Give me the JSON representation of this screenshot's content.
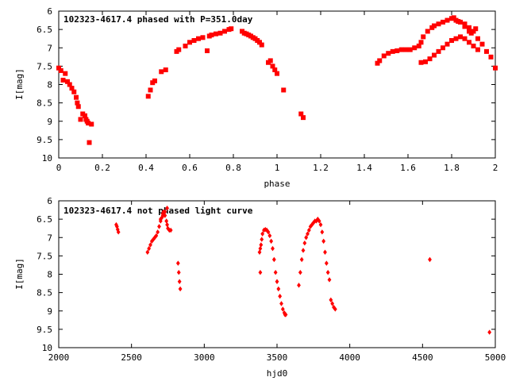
{
  "chart_data": [
    {
      "type": "scatter",
      "title": "102323-4617.4 phased with P=351.0day",
      "xlabel": "phase",
      "ylabel": "I[mag]",
      "xlim": [
        0,
        2
      ],
      "ylim": [
        6,
        10
      ],
      "y_inverted": true,
      "xticks": [
        "0",
        "0.2",
        "0.4",
        "0.6",
        "0.8",
        "1",
        "1.2",
        "1.4",
        "1.6",
        "1.8",
        "2"
      ],
      "yticks": [
        "6",
        "6.5",
        "7",
        "7.5",
        "8",
        "8.5",
        "9",
        "9.5",
        "10"
      ],
      "grid": false,
      "marker_color": "#ff0000",
      "marker": "filled-square",
      "series": [
        {
          "x": [
            0.0,
            0.01,
            0.02,
            0.03,
            0.04,
            0.05,
            0.06,
            0.07,
            0.08,
            0.085,
            0.09,
            0.1,
            0.11,
            0.12,
            0.125,
            0.13,
            0.135,
            0.14,
            0.15,
            0.41,
            0.42,
            0.43,
            0.44,
            0.47,
            0.49,
            0.54,
            0.55,
            0.58,
            0.6,
            0.62,
            0.64,
            0.66,
            0.68,
            0.69,
            0.7,
            0.72,
            0.74,
            0.76,
            0.78,
            0.79,
            0.84,
            0.85,
            0.86,
            0.87,
            0.88,
            0.89,
            0.9,
            0.91,
            0.92,
            0.93,
            0.96,
            0.97,
            0.98,
            0.99,
            1.0,
            1.03,
            1.11,
            1.12,
            1.46,
            1.47,
            1.49,
            1.51,
            1.53,
            1.55,
            1.57,
            1.59,
            1.61,
            1.63,
            1.65,
            1.66,
            1.67,
            1.69,
            1.71,
            1.72,
            1.74,
            1.76,
            1.78,
            1.8,
            1.82,
            1.84,
            1.86,
            1.88,
            1.9,
            1.92,
            1.94,
            1.96,
            1.98,
            2.0,
            1.66,
            1.68,
            1.7,
            1.72,
            1.74,
            1.76,
            1.78,
            1.8,
            1.82,
            1.84,
            1.86,
            1.88,
            1.9,
            1.92,
            1.81,
            1.83,
            1.86,
            1.88,
            1.91,
            1.89
          ],
          "y": [
            7.55,
            7.62,
            7.88,
            7.7,
            7.92,
            8.0,
            8.1,
            8.2,
            8.35,
            8.5,
            8.6,
            8.95,
            8.8,
            8.85,
            8.95,
            9.0,
            9.05,
            9.58,
            9.08,
            8.32,
            8.15,
            7.95,
            7.9,
            7.65,
            7.6,
            7.1,
            7.05,
            6.95,
            6.85,
            6.8,
            6.75,
            6.72,
            7.08,
            6.68,
            6.65,
            6.62,
            6.6,
            6.55,
            6.5,
            6.48,
            6.55,
            6.6,
            6.62,
            6.65,
            6.68,
            6.72,
            6.75,
            6.8,
            6.85,
            6.92,
            7.4,
            7.35,
            7.5,
            7.6,
            7.7,
            8.15,
            8.8,
            8.9,
            7.42,
            7.35,
            7.22,
            7.15,
            7.1,
            7.08,
            7.05,
            7.05,
            7.05,
            7.0,
            6.95,
            6.85,
            6.7,
            6.55,
            6.45,
            6.4,
            6.35,
            6.3,
            6.25,
            6.2,
            6.25,
            6.3,
            6.35,
            6.45,
            6.55,
            6.75,
            6.9,
            7.1,
            7.25,
            7.55,
            7.4,
            7.38,
            7.3,
            7.2,
            7.1,
            7.0,
            6.9,
            6.8,
            6.75,
            6.7,
            6.75,
            6.85,
            6.95,
            7.05,
            6.18,
            6.28,
            6.42,
            6.55,
            6.48,
            6.6
          ]
        }
      ]
    },
    {
      "type": "scatter",
      "title": "102323-4617.4 not phased light curve",
      "xlabel": "hjd0",
      "ylabel": "I[mag]",
      "xlim": [
        2000,
        5000
      ],
      "ylim": [
        6,
        10
      ],
      "y_inverted": true,
      "xticks": [
        "2000",
        "2500",
        "3000",
        "3500",
        "4000",
        "4500",
        "5000"
      ],
      "yticks": [
        "6",
        "6.5",
        "7",
        "7.5",
        "8",
        "8.5",
        "9",
        "9.5",
        "10"
      ],
      "grid": false,
      "marker_color": "#ff0000",
      "marker": "filled-diamond",
      "series": [
        {
          "x": [
            2395,
            2400,
            2405,
            2410,
            2610,
            2620,
            2630,
            2640,
            2650,
            2660,
            2670,
            2680,
            2690,
            2700,
            2710,
            2715,
            2720,
            2730,
            2740,
            2745,
            2750,
            2760,
            2770,
            2700,
            2715,
            2730,
            2745,
            2820,
            2825,
            2830,
            2835,
            3380,
            3385,
            3390,
            3395,
            3400,
            3410,
            3420,
            3430,
            3440,
            3450,
            3460,
            3470,
            3480,
            3490,
            3500,
            3510,
            3520,
            3530,
            3540,
            3550,
            3555,
            3560,
            3385,
            3650,
            3660,
            3670,
            3680,
            3690,
            3700,
            3710,
            3720,
            3730,
            3740,
            3750,
            3760,
            3770,
            3780,
            3790,
            3800,
            3810,
            3820,
            3830,
            3840,
            3850,
            3860,
            3870,
            3880,
            3890,
            3900,
            4550,
            4960
          ],
          "y": [
            6.65,
            6.7,
            6.78,
            6.85,
            7.4,
            7.3,
            7.2,
            7.1,
            7.05,
            7.0,
            6.95,
            6.85,
            6.7,
            6.55,
            6.45,
            6.35,
            6.3,
            6.4,
            6.55,
            6.65,
            6.75,
            6.8,
            6.8,
            6.5,
            6.4,
            6.3,
            6.2,
            7.7,
            7.95,
            8.2,
            8.4,
            7.4,
            7.3,
            7.2,
            7.05,
            6.9,
            6.8,
            6.78,
            6.8,
            6.85,
            6.95,
            7.1,
            7.3,
            7.6,
            7.95,
            8.2,
            8.4,
            8.6,
            8.8,
            8.95,
            9.05,
            9.1,
            9.1,
            7.95,
            8.3,
            7.95,
            7.6,
            7.35,
            7.15,
            7.0,
            6.9,
            6.8,
            6.7,
            6.65,
            6.6,
            6.55,
            6.55,
            6.5,
            6.55,
            6.65,
            6.85,
            7.1,
            7.4,
            7.7,
            7.95,
            8.15,
            8.7,
            8.8,
            8.9,
            8.95,
            7.6,
            9.58
          ]
        }
      ]
    }
  ]
}
